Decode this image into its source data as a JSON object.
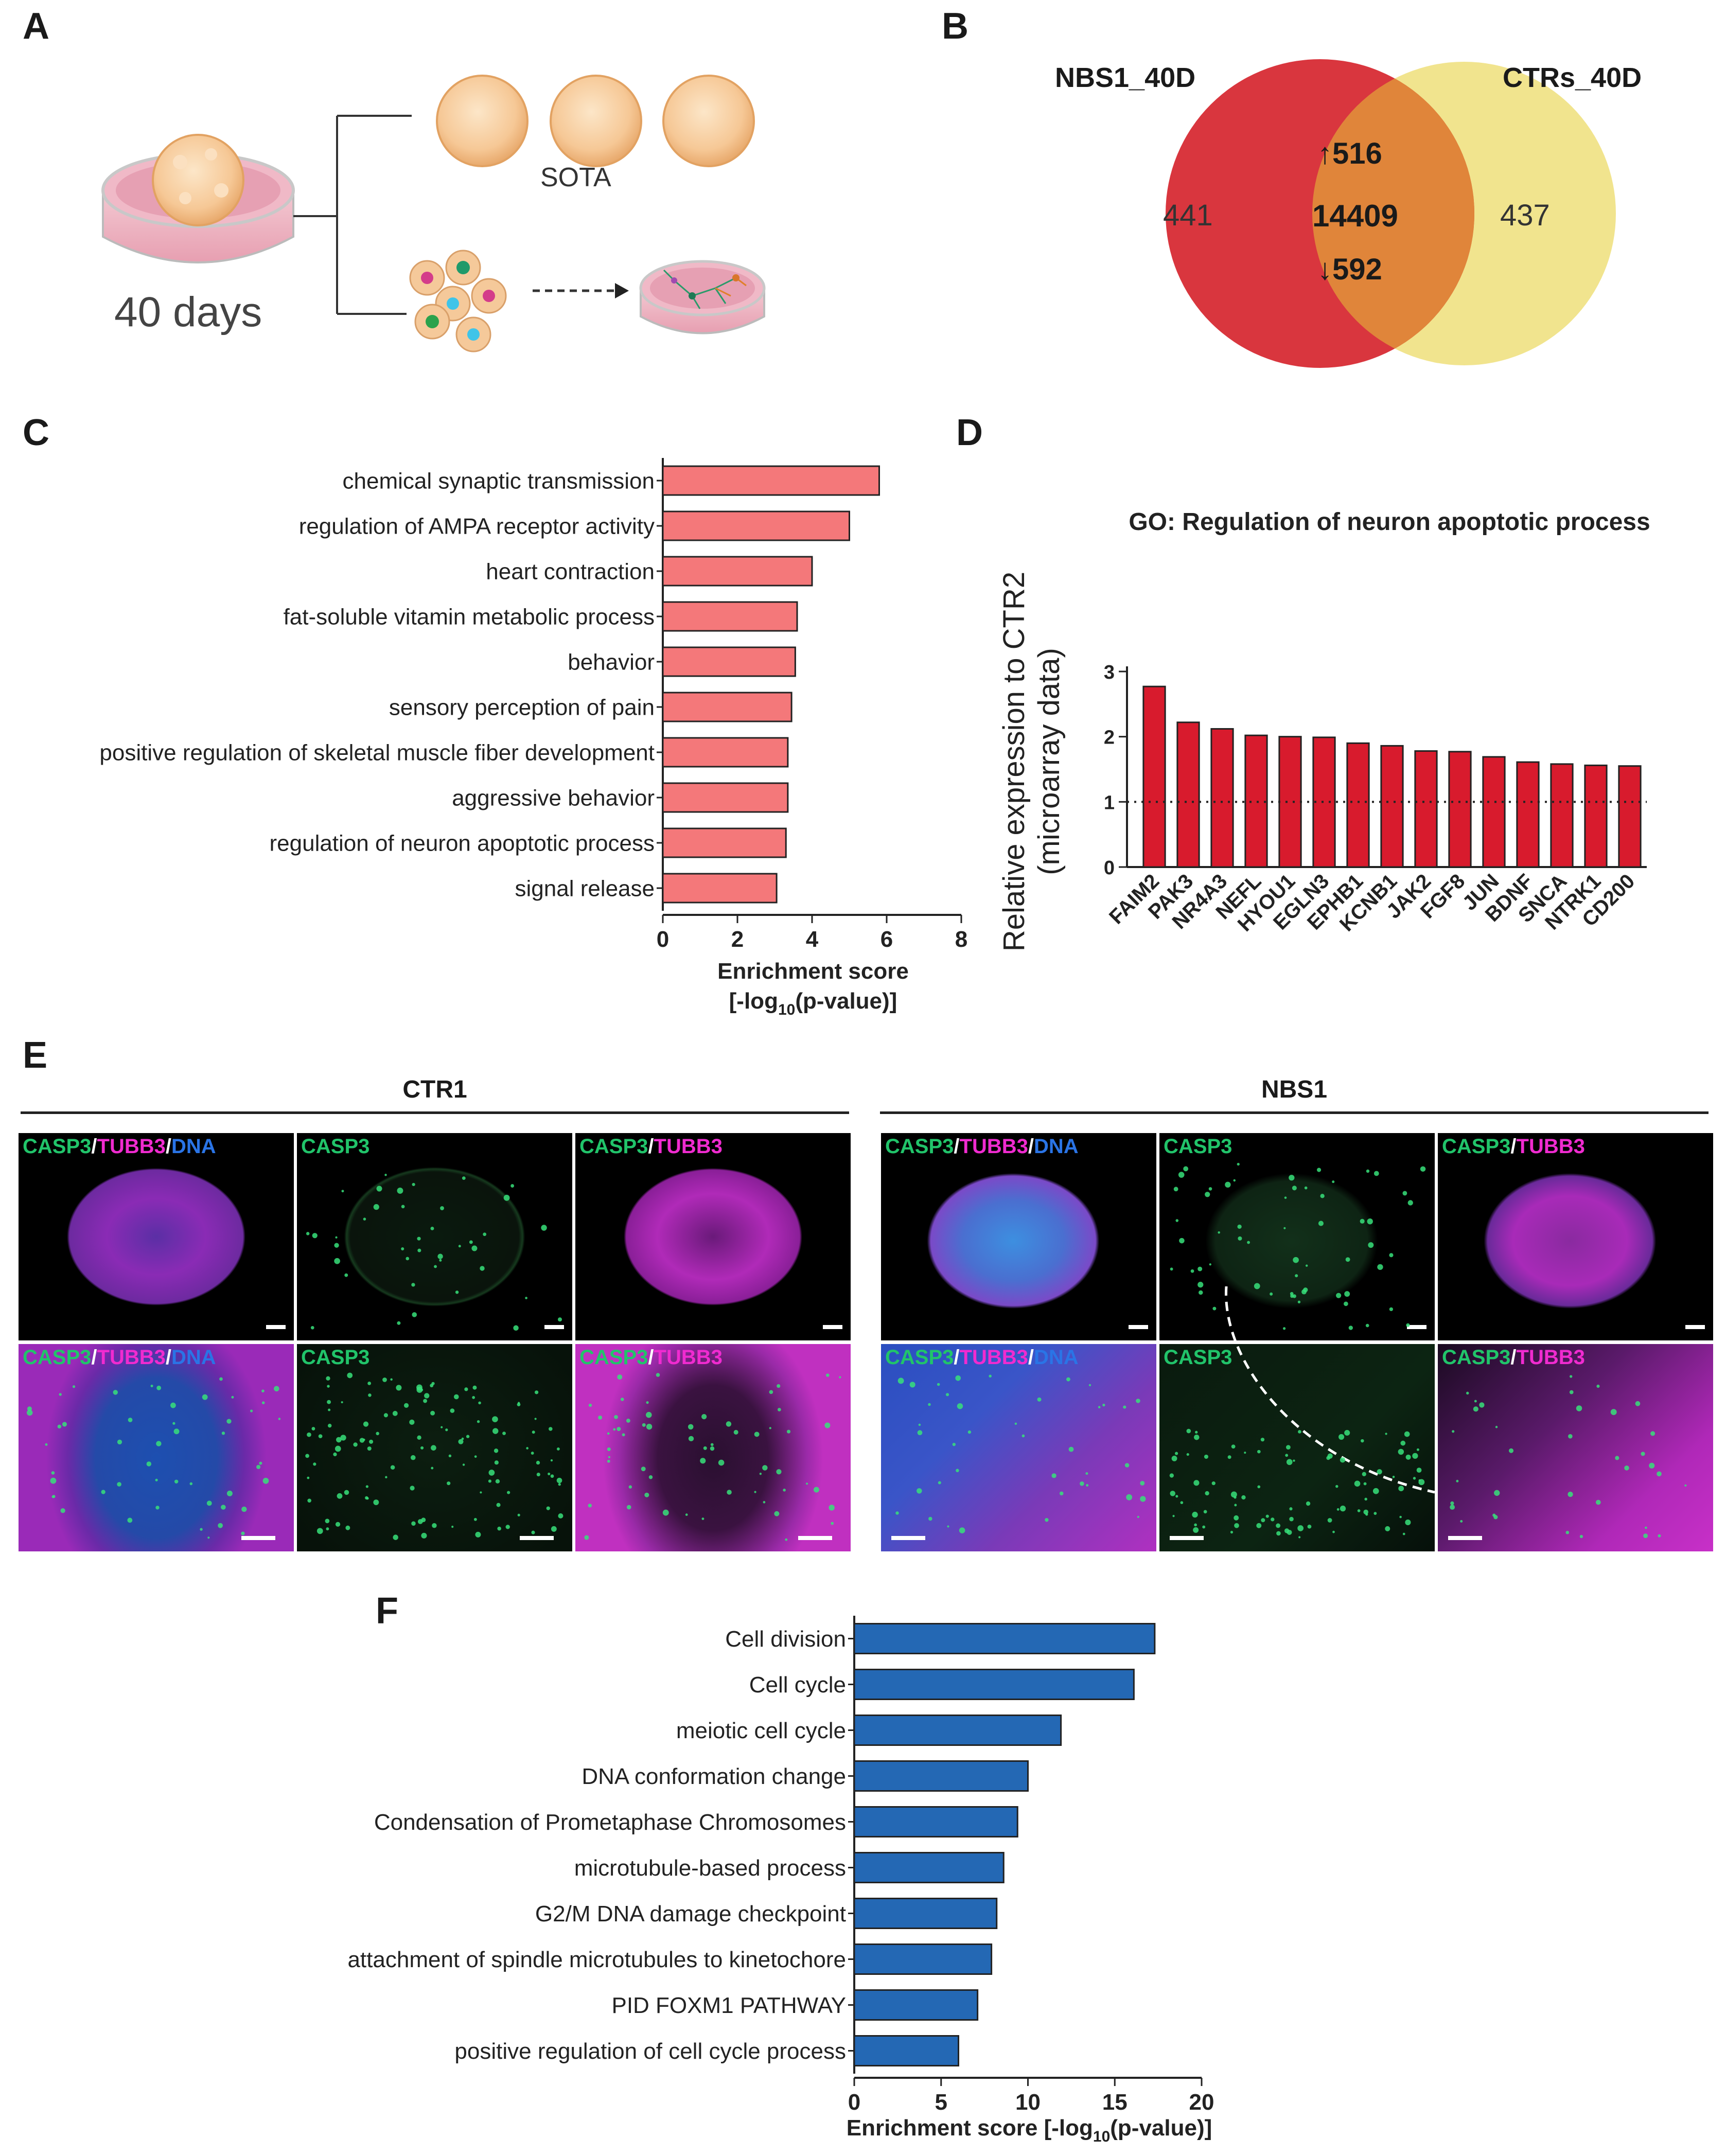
{
  "panels": {
    "A": "A",
    "B": "B",
    "C": "C",
    "D": "D",
    "E": "E",
    "F": "F"
  },
  "panelA": {
    "sota_label": "SOTA",
    "days_label": "40 days"
  },
  "panelB": {
    "left_set": "NBS1_40D",
    "right_set": "CTRs_40D",
    "left_only": "441",
    "shared": "14409",
    "right_only": "437",
    "up": "516",
    "down": "592",
    "left_color": "#d9363e",
    "right_color": "#f1e48e",
    "overlap_color": "#e0853a"
  },
  "panelE": {
    "group_ctr": "CTR1",
    "group_nbs": "NBS1",
    "tags": {
      "casp3": "CASP3",
      "tubb3": "TUBB3",
      "dna": "DNA",
      "slash": "/"
    }
  },
  "chart_data": [
    {
      "id": "C",
      "type": "bar",
      "orientation": "horizontal",
      "categories": [
        "chemical synaptic transmission",
        "regulation of AMPA receptor activity",
        "heart contraction",
        "fat-soluble vitamin metabolic process",
        "behavior",
        "sensory perception of pain",
        "positive regulation of skeletal muscle fiber development",
        "aggressive behavior",
        "regulation of neuron apoptotic process",
        "signal release"
      ],
      "values": [
        5.8,
        5.0,
        4.0,
        3.6,
        3.55,
        3.45,
        3.35,
        3.35,
        3.3,
        3.05
      ],
      "xlabel_line1": "Enrichment score",
      "xlabel_line2_pre": "[-log",
      "xlabel_sub": "10",
      "xlabel_line2_post": "(p-value)]",
      "xlim": [
        0,
        8
      ],
      "xticks": [
        0,
        2,
        4,
        6,
        8
      ],
      "color": "#f4787a"
    },
    {
      "id": "D",
      "type": "bar",
      "orientation": "vertical",
      "title": "GO: Regulation of neuron apoptotic process",
      "categories": [
        "FAIM2",
        "PAK3",
        "NR4A3",
        "NEFL",
        "HYOU1",
        "EGLN3",
        "EPHB1",
        "KCNB1",
        "JAK2",
        "FGF8",
        "JUN",
        "BDNF",
        "SNCA",
        "NTRK1",
        "CD200"
      ],
      "values": [
        2.77,
        2.22,
        2.12,
        2.02,
        2.0,
        1.99,
        1.9,
        1.86,
        1.78,
        1.77,
        1.69,
        1.61,
        1.58,
        1.56,
        1.55
      ],
      "ylabel_line1": "Relative expression to CTR2",
      "ylabel_line2": "(microarray data)",
      "ylim": [
        0,
        3
      ],
      "yticks": [
        0,
        1,
        2,
        3
      ],
      "reference_line": 1,
      "color": "#d81b2d"
    },
    {
      "id": "F",
      "type": "bar",
      "orientation": "horizontal",
      "categories": [
        "Cell division",
        "Cell cycle",
        "meiotic cell cycle",
        "DNA conformation change",
        "Condensation of Prometaphase Chromosomes",
        "microtubule-based process",
        "G2/M DNA damage checkpoint",
        "attachment of spindle microtubules to kinetochore",
        "PID FOXM1 PATHWAY",
        "positive regulation of cell cycle process"
      ],
      "values": [
        17.3,
        16.1,
        11.9,
        10.0,
        9.4,
        8.6,
        8.2,
        7.9,
        7.1,
        6.0
      ],
      "xlabel_pre": "Enrichment score [-log",
      "xlabel_sub": "10",
      "xlabel_post": "(p-value)]",
      "xlim": [
        0,
        20
      ],
      "xticks": [
        0,
        5,
        10,
        15,
        20
      ],
      "color": "#2468b4"
    }
  ]
}
